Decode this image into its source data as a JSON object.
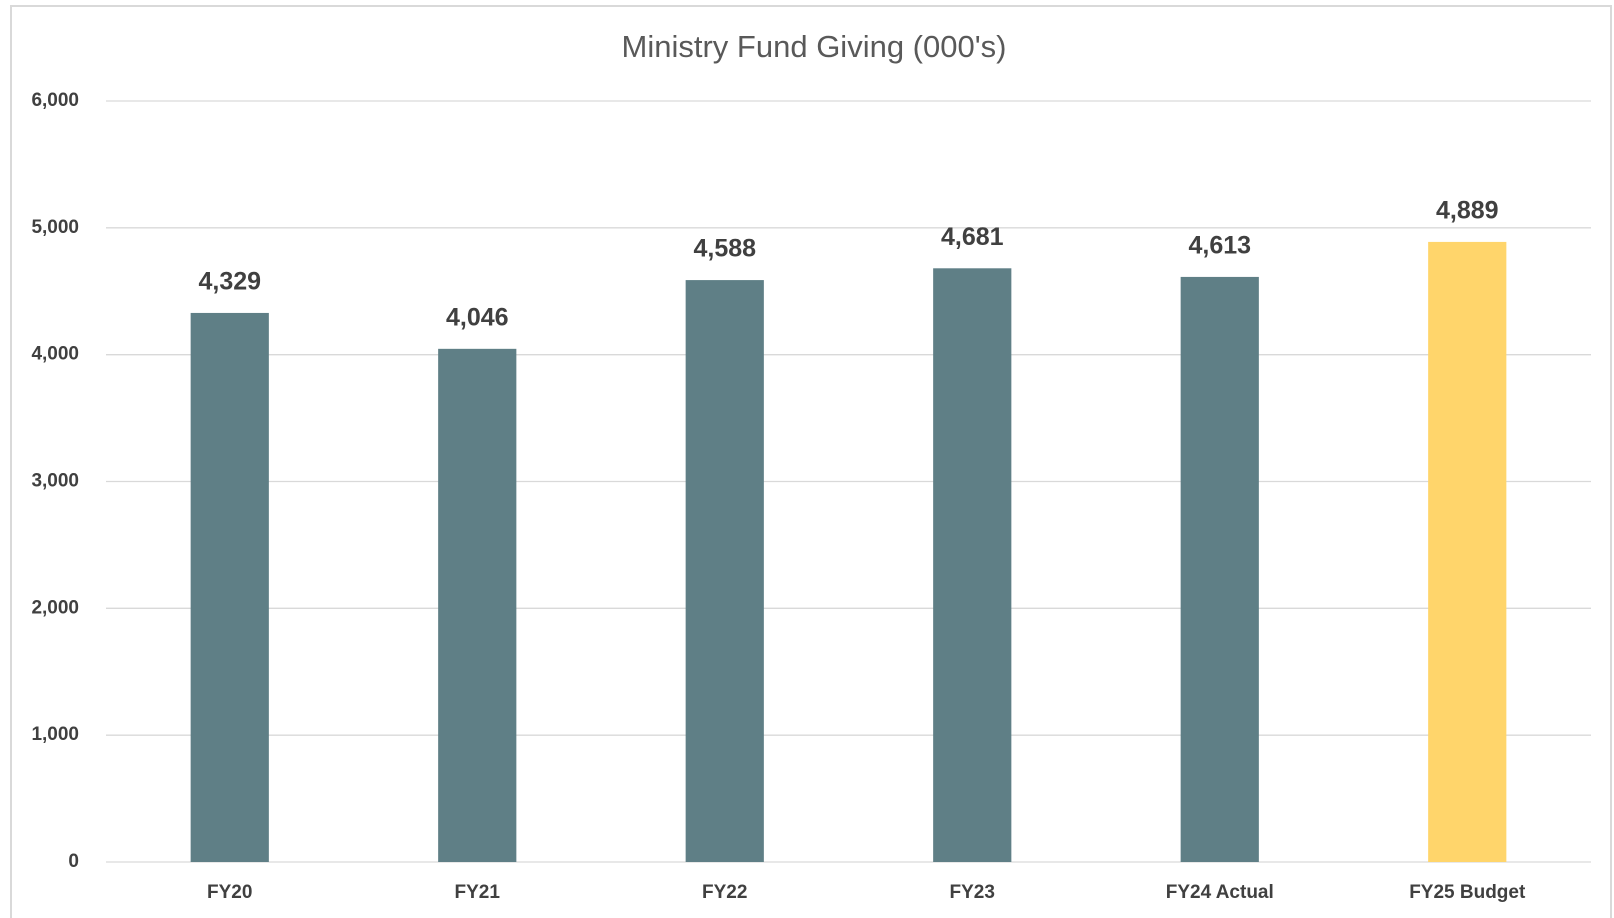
{
  "chart_data": {
    "type": "bar",
    "title": "Ministry Fund Giving (000's)",
    "categories": [
      "FY20",
      "FY21",
      "FY22",
      "FY23",
      "FY24 Actual",
      "FY25 Budget"
    ],
    "values": [
      4329,
      4046,
      4588,
      4681,
      4613,
      4889
    ],
    "value_labels": [
      "4,329",
      "4,046",
      "4,588",
      "4,681",
      "4,613",
      "4,889"
    ],
    "colors": [
      "#5f7f86",
      "#5f7f86",
      "#5f7f86",
      "#5f7f86",
      "#5f7f86",
      "#ffd56b"
    ],
    "ylim": [
      0,
      6000
    ],
    "yticks": [
      0,
      {
        "value": 1000,
        "label": "1,000"
      },
      {
        "value": 2000,
        "label": "2,000"
      },
      {
        "value": 3000,
        "label": "3,000"
      },
      {
        "value": 4000,
        "label": "4,000"
      },
      {
        "value": 5000,
        "label": "5,000"
      },
      {
        "value": 6000,
        "label": "6,000"
      }
    ],
    "grid": true
  }
}
